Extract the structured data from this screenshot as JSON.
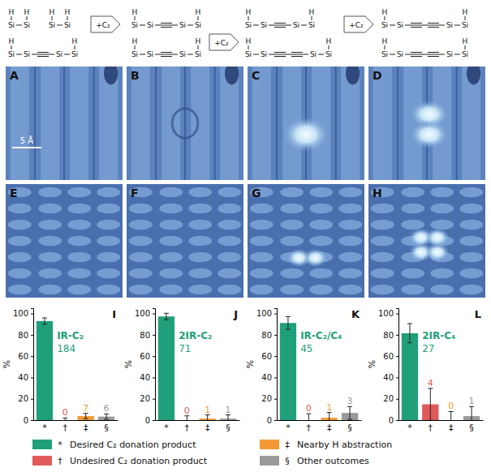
{
  "schematic": {
    "h": "H",
    "si": "Si",
    "step": "+C₂"
  },
  "images": {
    "panels": [
      "A",
      "B",
      "C",
      "D",
      "E",
      "F",
      "G",
      "H"
    ],
    "scale_bar": "5 Å"
  },
  "chart_data": [
    {
      "type": "bar",
      "panel": "I",
      "title": "IR-C₂",
      "n": 184,
      "categories": [
        "*",
        "†",
        "‡",
        "§"
      ],
      "values": [
        92.9,
        0,
        3.8,
        3.3
      ],
      "errors": [
        3,
        2,
        2.5,
        2.5
      ],
      "counts": [
        null,
        0,
        7,
        6
      ],
      "colors": [
        "#1fa07a",
        "#e05a5a",
        "#f39a36",
        "#9a9a9a"
      ],
      "ylabel": "%",
      "ylim": [
        0,
        105
      ],
      "yticks": [
        0,
        20,
        40,
        60,
        80,
        100
      ]
    },
    {
      "type": "bar",
      "panel": "J",
      "title": "2IR-C₂",
      "n": 71,
      "categories": [
        "*",
        "†",
        "‡",
        "§"
      ],
      "values": [
        97.2,
        0,
        1.4,
        1.4
      ],
      "errors": [
        3,
        4,
        3.5,
        3.5
      ],
      "counts": [
        null,
        0,
        1,
        1
      ],
      "colors": [
        "#1fa07a",
        "#e05a5a",
        "#f39a36",
        "#9a9a9a"
      ],
      "ylabel": "%",
      "ylim": [
        0,
        105
      ],
      "yticks": [
        0,
        20,
        40,
        60,
        80,
        100
      ]
    },
    {
      "type": "bar",
      "panel": "K",
      "title": "IR-C₂/C₄",
      "n": 45,
      "categories": [
        "*",
        "†",
        "‡",
        "§"
      ],
      "values": [
        91.1,
        0,
        2.2,
        6.7
      ],
      "errors": [
        6,
        6,
        5,
        6
      ],
      "counts": [
        null,
        0,
        1,
        3
      ],
      "colors": [
        "#1fa07a",
        "#e05a5a",
        "#f39a36",
        "#9a9a9a"
      ],
      "ylabel": "%",
      "ylim": [
        0,
        105
      ],
      "yticks": [
        0,
        20,
        40,
        60,
        80,
        100
      ]
    },
    {
      "type": "bar",
      "panel": "L",
      "title": "2IR-C₄",
      "n": 27,
      "categories": [
        "*",
        "†",
        "‡",
        "§"
      ],
      "values": [
        81.5,
        14.8,
        0,
        3.7
      ],
      "errors": [
        9,
        15,
        8,
        9
      ],
      "counts": [
        null,
        4,
        0,
        1
      ],
      "colors": [
        "#1fa07a",
        "#e05a5a",
        "#f39a36",
        "#9a9a9a"
      ],
      "ylabel": "%",
      "ylim": [
        0,
        105
      ],
      "yticks": [
        0,
        20,
        40,
        60,
        80,
        100
      ]
    }
  ],
  "legend": {
    "entries": [
      "Desired C₂ donation product",
      "Undesired C₂ donation product",
      "Nearby H abstraction",
      "Other outcomes"
    ]
  }
}
